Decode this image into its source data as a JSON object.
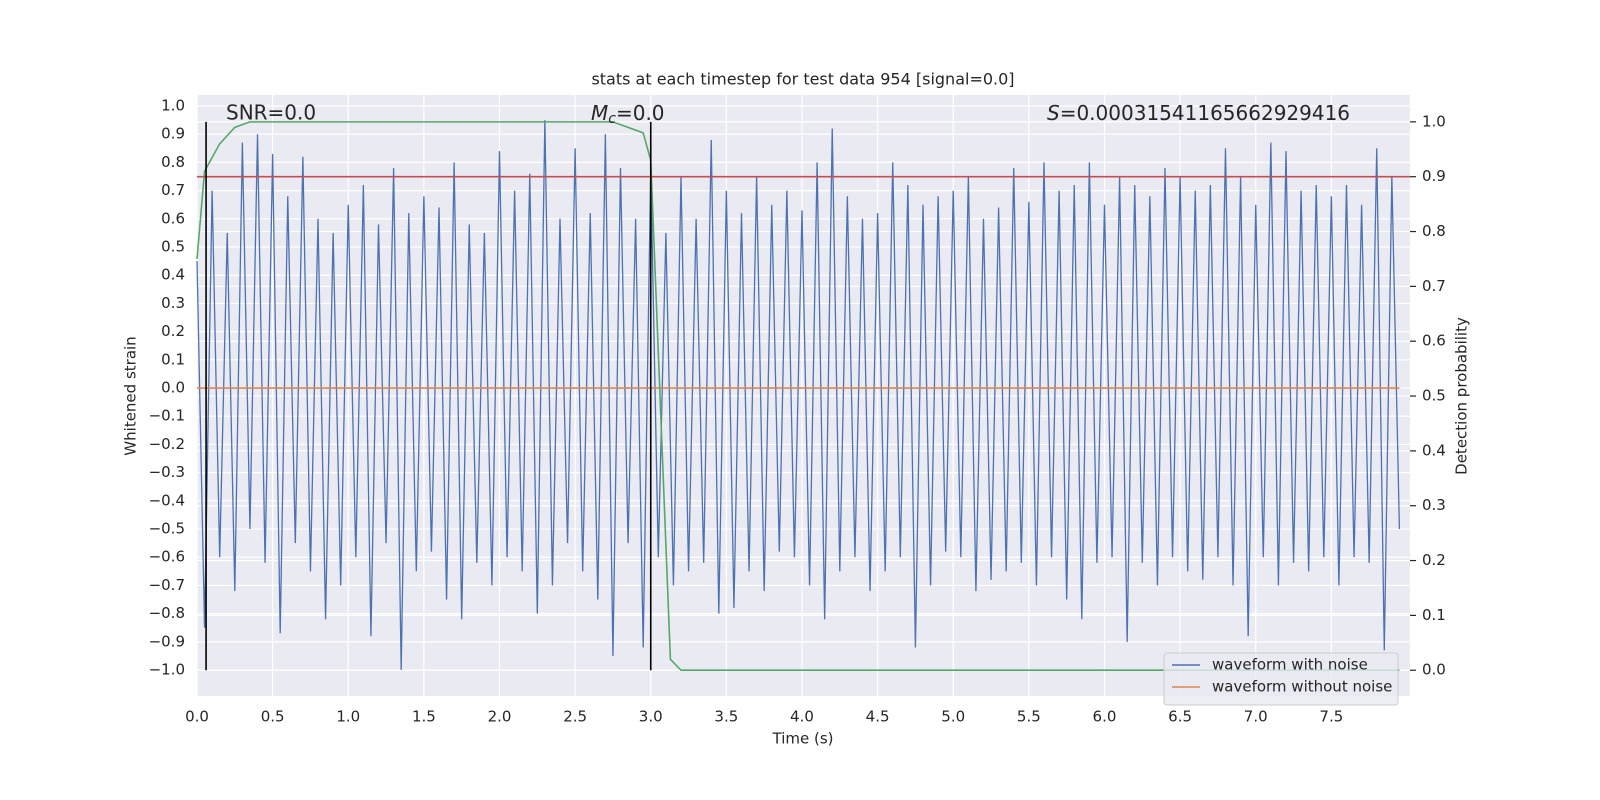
{
  "chart_data": {
    "type": "line",
    "title": "stats at each timestep for test data 954 [signal=0.0]",
    "xlabel": "Time (s)",
    "ylabel": "Whitened strain",
    "y2label": "Detection probability",
    "xlim": [
      0,
      8.02
    ],
    "ylim": [
      -1.092,
      1.039
    ],
    "y2lim": [
      -0.047,
      1.049
    ],
    "xticks": [
      {
        "value": 0,
        "label": "0.0"
      },
      0.5,
      {
        "value": 1,
        "label": "1.0"
      },
      1.5,
      {
        "value": 2,
        "label": "2.0"
      },
      2.5,
      {
        "value": 3,
        "label": "3.0"
      },
      3.5,
      {
        "value": 4,
        "label": "4.0"
      },
      4.5,
      {
        "value": 5,
        "label": "5.0"
      },
      5.5,
      {
        "value": 6,
        "label": "6.0"
      },
      6.5,
      {
        "value": 7,
        "label": "7.0"
      },
      7.5
    ],
    "yticks": [
      {
        "value": -1,
        "label": "−1.0"
      },
      {
        "value": -0.9,
        "label": "−0.9"
      },
      {
        "value": -0.8,
        "label": "−0.8"
      },
      {
        "value": -0.7,
        "label": "−0.7"
      },
      {
        "value": -0.6,
        "label": "−0.6"
      },
      {
        "value": -0.5,
        "label": "−0.5"
      },
      {
        "value": -0.4,
        "label": "−0.4"
      },
      {
        "value": -0.3,
        "label": "−0.3"
      },
      {
        "value": -0.2,
        "label": "−0.2"
      },
      {
        "value": -0.1,
        "label": "−0.1"
      },
      {
        "value": 0,
        "label": "0.0"
      },
      0.1,
      0.2,
      0.3,
      0.4,
      0.5,
      0.6,
      0.7,
      0.8,
      0.9,
      {
        "value": 1,
        "label": "1.0"
      }
    ],
    "y2ticks": [
      {
        "value": 0,
        "label": "0.0"
      },
      0.1,
      0.2,
      0.3,
      0.4,
      0.5,
      0.6,
      0.7,
      0.8,
      0.9,
      {
        "value": 1,
        "label": "1.0"
      }
    ],
    "grid": true,
    "legend": "lower right",
    "series": [
      {
        "name": "waveform with noise",
        "color": "#4c72b0",
        "x": [
          0,
          0.05,
          0.1,
          0.15,
          0.2,
          0.25,
          0.3,
          0.35,
          0.4,
          0.45,
          0.5,
          0.55,
          0.6,
          0.65,
          0.7,
          0.75,
          0.8,
          0.85,
          0.9,
          0.95,
          1,
          1.05,
          1.1,
          1.15,
          1.2,
          1.25,
          1.3,
          1.35,
          1.4,
          1.45,
          1.5,
          1.55,
          1.6,
          1.65,
          1.7,
          1.75,
          1.8,
          1.85,
          1.9,
          1.95,
          2,
          2.05,
          2.1,
          2.15,
          2.2,
          2.25,
          2.3,
          2.35,
          2.4,
          2.45,
          2.5,
          2.55,
          2.6,
          2.65,
          2.7,
          2.75,
          2.8,
          2.85,
          2.9,
          2.95,
          3,
          3.05,
          3.1,
          3.15,
          3.2,
          3.25,
          3.3,
          3.35,
          3.4,
          3.45,
          3.5,
          3.55,
          3.6,
          3.65,
          3.7,
          3.75,
          3.8,
          3.85,
          3.9,
          3.95,
          4,
          4.05,
          4.1,
          4.15,
          4.2,
          4.25,
          4.3,
          4.35,
          4.4,
          4.45,
          4.5,
          4.55,
          4.6,
          4.65,
          4.7,
          4.75,
          4.8,
          4.85,
          4.9,
          4.95,
          5,
          5.05,
          5.1,
          5.15,
          5.2,
          5.25,
          5.3,
          5.35,
          5.4,
          5.45,
          5.5,
          5.55,
          5.6,
          5.65,
          5.7,
          5.75,
          5.8,
          5.85,
          5.9,
          5.95,
          6,
          6.05,
          6.1,
          6.15,
          6.2,
          6.25,
          6.3,
          6.35,
          6.4,
          6.45,
          6.5,
          6.55,
          6.6,
          6.65,
          6.7,
          6.75,
          6.8,
          6.85,
          6.9,
          6.95,
          7,
          7.05,
          7.1,
          7.15,
          7.2,
          7.25,
          7.3,
          7.35,
          7.4,
          7.45,
          7.5,
          7.55,
          7.6,
          7.65,
          7.7,
          7.75,
          7.8,
          7.85,
          7.9,
          7.95
        ],
        "values": [
          0.45,
          -0.85,
          0.7,
          -0.6,
          0.55,
          -0.72,
          0.87,
          -0.5,
          0.9,
          -0.62,
          0.83,
          -0.87,
          0.68,
          -0.55,
          0.82,
          -0.65,
          0.6,
          -0.82,
          0.55,
          -0.7,
          0.65,
          -0.6,
          0.72,
          -0.88,
          0.58,
          -0.55,
          0.78,
          -1.0,
          0.62,
          -0.65,
          0.68,
          -0.58,
          0.64,
          -0.75,
          0.8,
          -0.82,
          0.58,
          -0.62,
          0.55,
          -0.7,
          0.84,
          -0.6,
          0.7,
          -0.65,
          0.76,
          -0.8,
          0.95,
          -0.7,
          0.6,
          -0.55,
          0.85,
          -0.65,
          0.62,
          -0.75,
          0.9,
          -0.95,
          0.78,
          -0.55,
          0.6,
          -0.92,
          0.78,
          -0.6,
          0.55,
          -0.7,
          0.75,
          -0.65,
          0.6,
          -0.62,
          0.88,
          -0.8,
          0.7,
          -0.78,
          0.62,
          -0.65,
          0.75,
          -0.72,
          0.65,
          -0.58,
          0.7,
          -0.6,
          0.63,
          -0.7,
          0.8,
          -0.82,
          0.92,
          -0.65,
          0.68,
          -0.6,
          0.6,
          -0.72,
          0.62,
          -0.65,
          0.8,
          -0.6,
          0.72,
          -0.92,
          0.65,
          -0.7,
          0.68,
          -0.58,
          0.7,
          -0.6,
          0.75,
          -0.72,
          0.6,
          -0.68,
          0.64,
          -0.65,
          0.78,
          -0.62,
          0.66,
          -0.7,
          0.8,
          -0.6,
          0.7,
          -0.75,
          0.72,
          -0.82,
          0.8,
          -0.62,
          0.65,
          -0.6,
          0.75,
          -0.9,
          0.72,
          -0.62,
          0.68,
          -0.7,
          0.78,
          -0.6,
          0.75,
          -0.65,
          0.7,
          -0.68,
          0.72,
          -0.6,
          0.85,
          -0.7,
          0.75,
          -0.88,
          0.65,
          -0.6,
          0.87,
          -0.7,
          0.84,
          -0.62,
          0.7,
          -0.65,
          0.72,
          -0.6,
          0.68,
          -0.7,
          0.72,
          -0.6,
          0.65,
          -0.62,
          0.85,
          -0.93,
          0.75,
          -0.5
        ]
      },
      {
        "name": "waveform without noise",
        "color": "#dd8452",
        "x": [
          0,
          7.95
        ],
        "values": [
          0,
          0
        ]
      },
      {
        "color": "#55a868",
        "axis": "y2",
        "x": [
          0,
          0.05,
          0.15,
          0.25,
          0.35,
          2.75,
          2.85,
          2.95,
          3.0,
          3.13,
          3.2,
          7.95
        ],
        "values": [
          0.75,
          0.91,
          0.96,
          0.99,
          1.0,
          1.0,
          0.99,
          0.98,
          0.93,
          0.02,
          0.0,
          0.0
        ]
      }
    ],
    "hlines": [
      {
        "axis": "y2",
        "value": 0.9,
        "color": "#c44e52"
      }
    ],
    "vlines": {
      "x": [
        0.06,
        3.0
      ],
      "axis": "y2",
      "span": [
        0,
        1
      ],
      "color": "#000000"
    },
    "annotations": [
      {
        "text": "SNR=0.0"
      },
      {
        "symbol": "M",
        "subscript": "c",
        "text": "=0.0"
      },
      {
        "symbol": "S",
        "text": "=0.00031541165662929416"
      }
    ]
  }
}
